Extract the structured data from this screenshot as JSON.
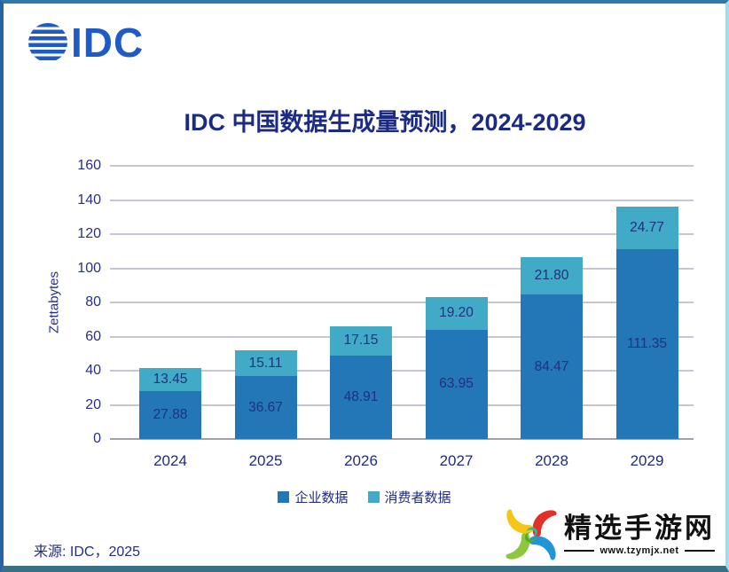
{
  "header": {
    "logo_text": "IDC"
  },
  "chart_data": {
    "type": "bar",
    "stacked": true,
    "title": "IDC 中国数据生成量预测，2024-2029",
    "xlabel": "",
    "ylabel": "Zettabytes",
    "ylim": [
      0,
      160
    ],
    "yticks": [
      0,
      20,
      40,
      60,
      80,
      100,
      120,
      140,
      160
    ],
    "grid": true,
    "legend_position": "bottom",
    "value_label_decimals": 2,
    "categories": [
      "2024",
      "2025",
      "2026",
      "2027",
      "2028",
      "2029"
    ],
    "series": [
      {
        "name": "企业数据",
        "color": "#2377b6",
        "values": [
          27.88,
          36.67,
          48.91,
          63.95,
          84.47,
          111.35
        ]
      },
      {
        "name": "消费者数据",
        "color": "#41abc7",
        "values": [
          13.45,
          15.11,
          17.15,
          19.2,
          21.8,
          24.77
        ]
      }
    ]
  },
  "source_note": "来源: IDC，2025",
  "watermark": {
    "site_name": "精选手游网",
    "site_url": "www.tzymjx.net"
  },
  "colors": {
    "logo_blue": "#1e5bc6",
    "title_navy": "#1b2b85",
    "tick_navy": "#292f84",
    "data_label_navy": "#203080",
    "gridline": "#c6c6d0",
    "axis_line": "#9fa0a8",
    "frame_top": "#2e79a8",
    "frame_left": "#2765a2",
    "frame_right": "#a5dbeb",
    "frame_bottom": "#3a7086"
  }
}
